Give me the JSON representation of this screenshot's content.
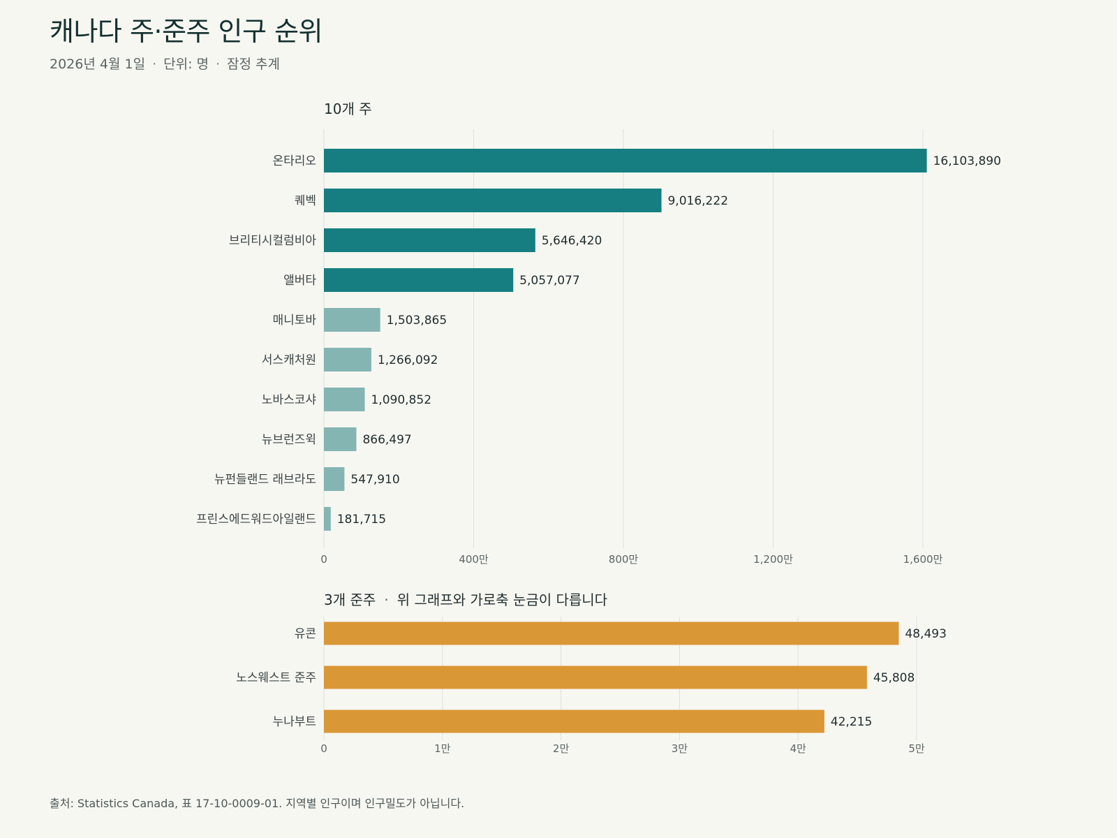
{
  "title": "캐나다 주·준주 인구 순위",
  "subtitle": {
    "date": "2026년 4월 1일",
    "unit": "단위: 명",
    "note": "잠정 추계",
    "separator": "·"
  },
  "colors": {
    "top_province": "#167e80",
    "other_province": "#84b5b3",
    "territory": "#d99735",
    "grid": "#dedede",
    "background": "#f7f7f2"
  },
  "chart_data": [
    {
      "type": "bar",
      "orientation": "horizontal",
      "title": "10개 주",
      "categories": [
        "온타리오",
        "퀘벡",
        "브리티시컬럼비아",
        "앨버타",
        "매니토바",
        "서스캐처원",
        "노바스코샤",
        "뉴브런즈윅",
        "뉴펀들랜드 래브라도",
        "프린스에드워드아일랜드"
      ],
      "values": [
        16103890,
        9016222,
        5646420,
        5057077,
        1503865,
        1266092,
        1090852,
        866497,
        547910,
        181715
      ],
      "value_labels": [
        "16,103,890",
        "9,016,222",
        "5,646,420",
        "5,057,077",
        "1,503,865",
        "1,266,092",
        "1,090,852",
        "866,497",
        "547,910",
        "181,715"
      ],
      "highlight_count": 4,
      "xlim": [
        0,
        16000000
      ],
      "xticks": [
        0,
        4000000,
        8000000,
        12000000,
        16000000
      ],
      "xtick_labels": [
        "0",
        "400만",
        "800만",
        "1,200만",
        "1,600만"
      ],
      "grid": true
    },
    {
      "type": "bar",
      "orientation": "horizontal",
      "title": "3개 준주",
      "title_note": "위 그래프와 가로축 눈금이 다릅니다",
      "categories": [
        "유콘",
        "노스웨스트 준주",
        "누나부트"
      ],
      "values": [
        48493,
        45808,
        42215
      ],
      "value_labels": [
        "48,493",
        "45,808",
        "42,215"
      ],
      "xlim": [
        0,
        50000
      ],
      "xticks": [
        0,
        10000,
        20000,
        30000,
        40000,
        50000
      ],
      "xtick_labels": [
        "0",
        "1만",
        "2만",
        "3만",
        "4만",
        "5만"
      ],
      "grid": true
    }
  ],
  "source": "출처: Statistics Canada, 표 17-10-0009-01. 지역별 인구이며 인구밀도가 아닙니다."
}
